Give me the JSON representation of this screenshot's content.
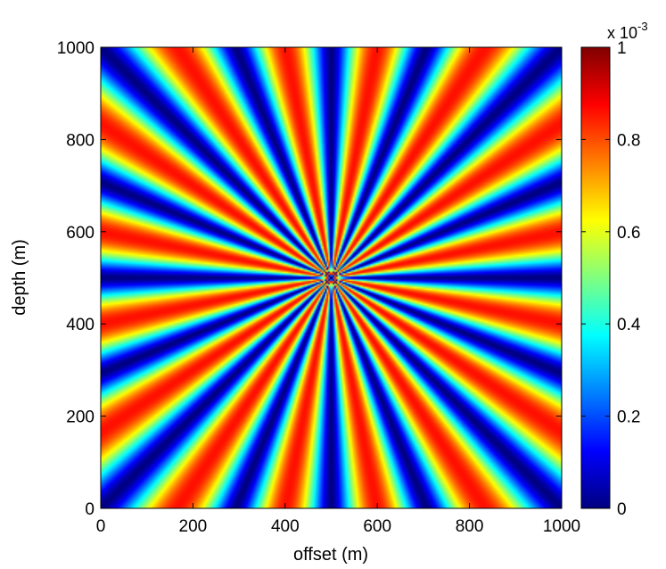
{
  "chart_data": {
    "type": "heatmap",
    "title": "",
    "xlabel": "offset (m)",
    "ylabel": "depth (m)",
    "xlim": [
      0,
      1000
    ],
    "ylim": [
      1000,
      0
    ],
    "x_ticks": [
      "0",
      "200",
      "400",
      "600",
      "800",
      "1000"
    ],
    "x_tick_values": [
      0,
      200,
      400,
      600,
      800,
      1000
    ],
    "y_ticks": [
      "0",
      "200",
      "400",
      "600",
      "800",
      "1000"
    ],
    "y_tick_values": [
      0,
      200,
      400,
      600,
      800,
      1000
    ],
    "source_point": {
      "x": 500,
      "y": 500
    },
    "angular_lobes": 16,
    "colormap": "jet",
    "colorbar": {
      "range": [
        0,
        1
      ],
      "ticks": [
        "0",
        "0.2",
        "0.4",
        "0.6",
        "0.8",
        "1"
      ],
      "tick_values": [
        0,
        0.2,
        0.4,
        0.6,
        0.8,
        1
      ],
      "multiplier_base": "x 10",
      "multiplier_exponent": "-3"
    },
    "colors": [
      "#00008f",
      "#0000ff",
      "#00ffff",
      "#ffff00",
      "#ff0000",
      "#800000"
    ]
  }
}
